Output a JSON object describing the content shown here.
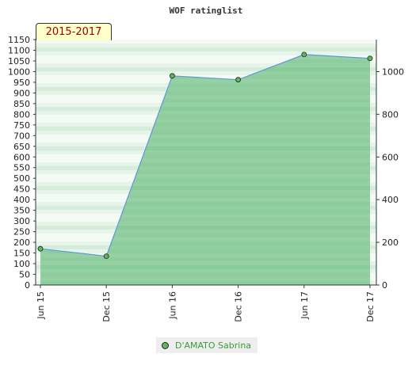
{
  "chart_data": {
    "type": "area",
    "title": "WOF ratinglist",
    "period_label": "2015-2017",
    "categories": [
      "Jun 15",
      "Dec 15",
      "Jun 16",
      "Dec 16",
      "Jun 17",
      "Dec 17"
    ],
    "series": [
      {
        "name": "D'AMATO Sabrina",
        "values": [
          170,
          135,
          980,
          962,
          1080,
          1062
        ]
      }
    ],
    "ylim": [
      0,
      1150
    ],
    "y_ticks_left": [
      0,
      50,
      100,
      150,
      200,
      250,
      300,
      350,
      400,
      450,
      500,
      550,
      600,
      650,
      700,
      750,
      800,
      850,
      900,
      950,
      1000,
      1050,
      1100,
      1150
    ],
    "y_ticks_right": [
      0,
      200,
      400,
      600,
      800,
      1000
    ],
    "grid": "horizontal bands",
    "legend_position": "bottom-center",
    "colors": {
      "area": "#7cc48e",
      "line": "#5b9bd5",
      "marker": "#5cb85c"
    }
  }
}
